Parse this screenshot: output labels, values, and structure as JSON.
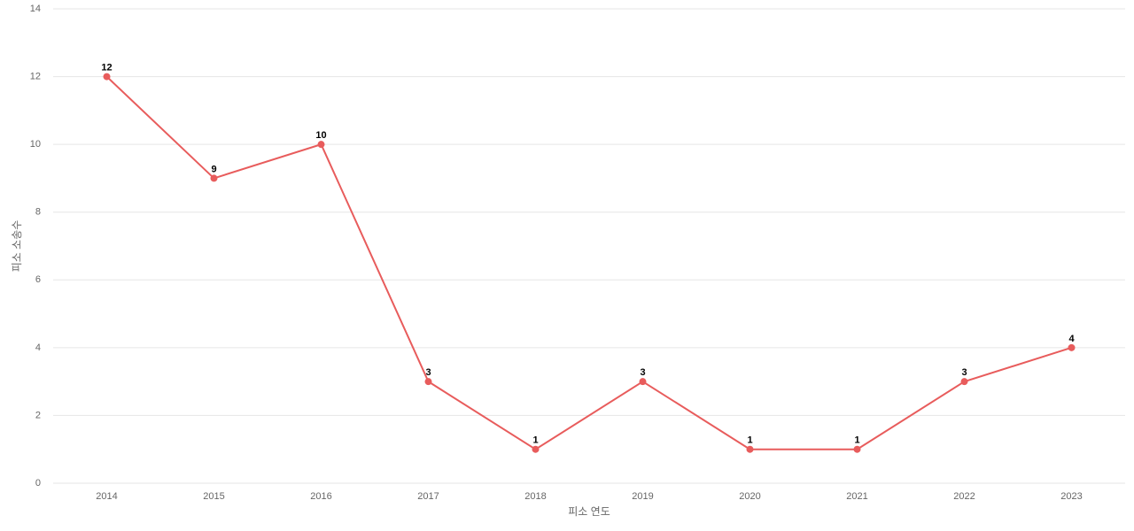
{
  "chart_data": {
    "type": "line",
    "x_label": "피소 연도",
    "y_label": "피소 소송수",
    "categories": [
      "2014",
      "2015",
      "2016",
      "2017",
      "2018",
      "2019",
      "2020",
      "2021",
      "2022",
      "2023"
    ],
    "values": [
      12,
      9,
      10,
      3,
      1,
      3,
      1,
      1,
      3,
      4
    ],
    "color": "#e85c5c",
    "ylim": [
      0,
      14
    ],
    "yticks": [
      0,
      2,
      4,
      6,
      8,
      10,
      12,
      14
    ],
    "grid": true
  }
}
